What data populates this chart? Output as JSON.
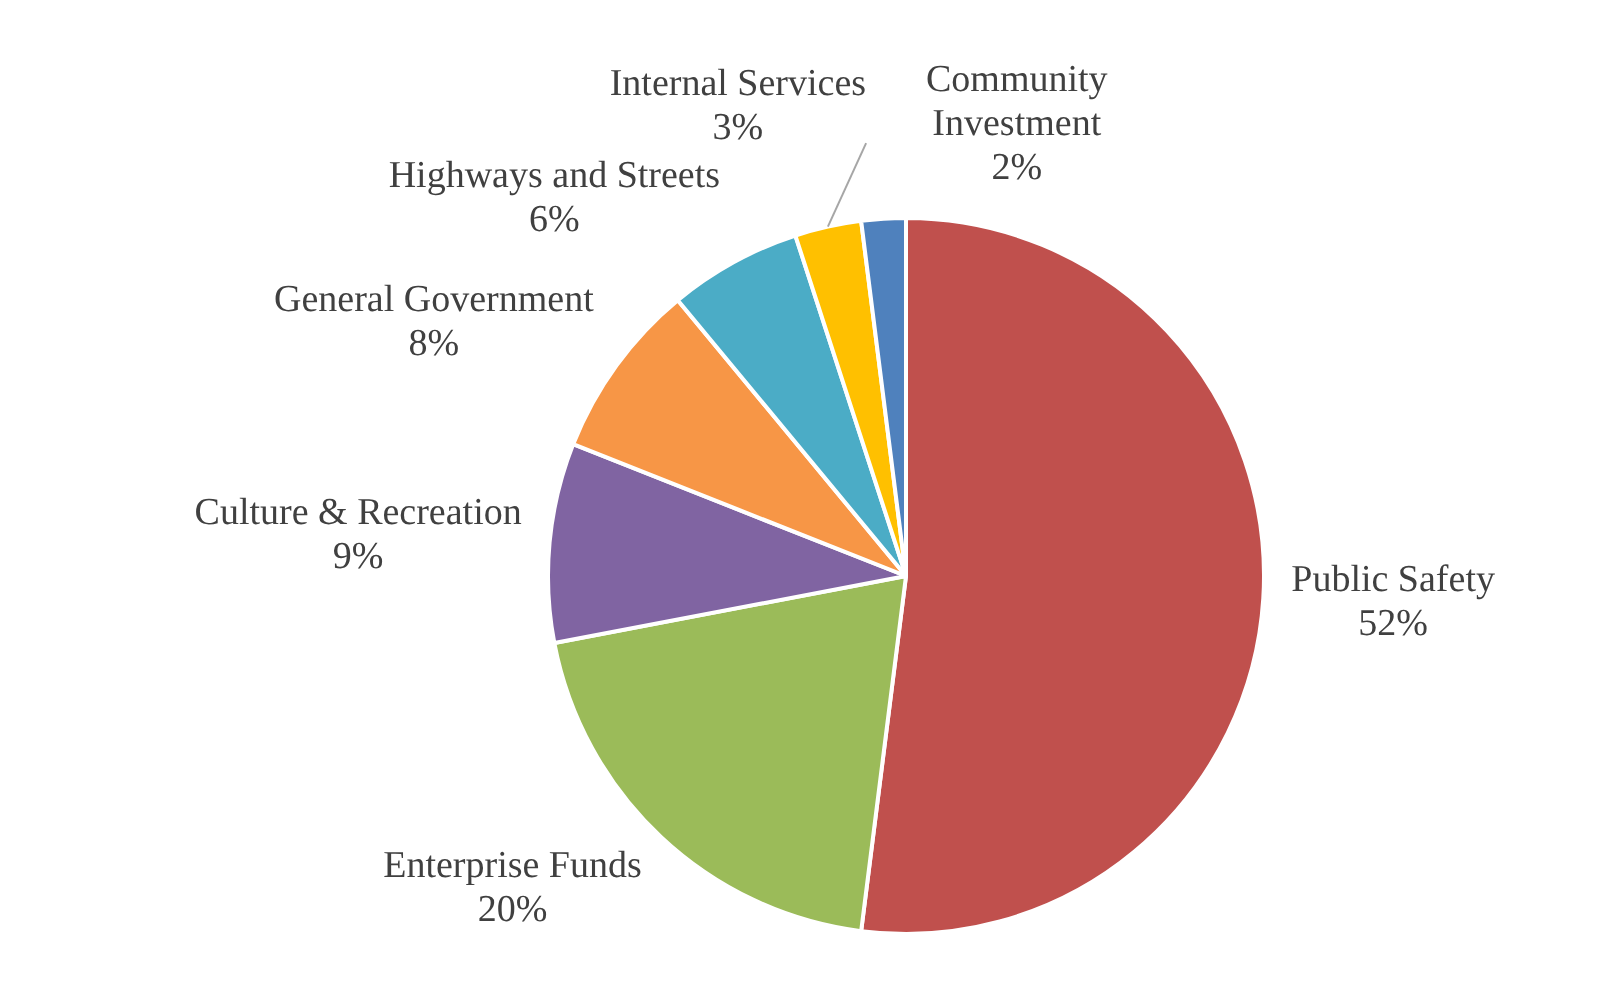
{
  "chart_data": {
    "type": "pie",
    "categories": [
      "Public Safety",
      "Enterprise Funds",
      "Culture & Recreation",
      "General Government",
      "Highways and Streets",
      "Internal Services",
      "Community Investment"
    ],
    "values": [
      52,
      20,
      9,
      8,
      6,
      3,
      2
    ],
    "value_labels": [
      "52%",
      "20%",
      "9%",
      "8%",
      "6%",
      "3%",
      "2%"
    ],
    "colors": [
      "#c0504d",
      "#9bbb59",
      "#8064a2",
      "#f79646",
      "#4bacc6",
      "#ffc000",
      "#4f81bd"
    ]
  }
}
